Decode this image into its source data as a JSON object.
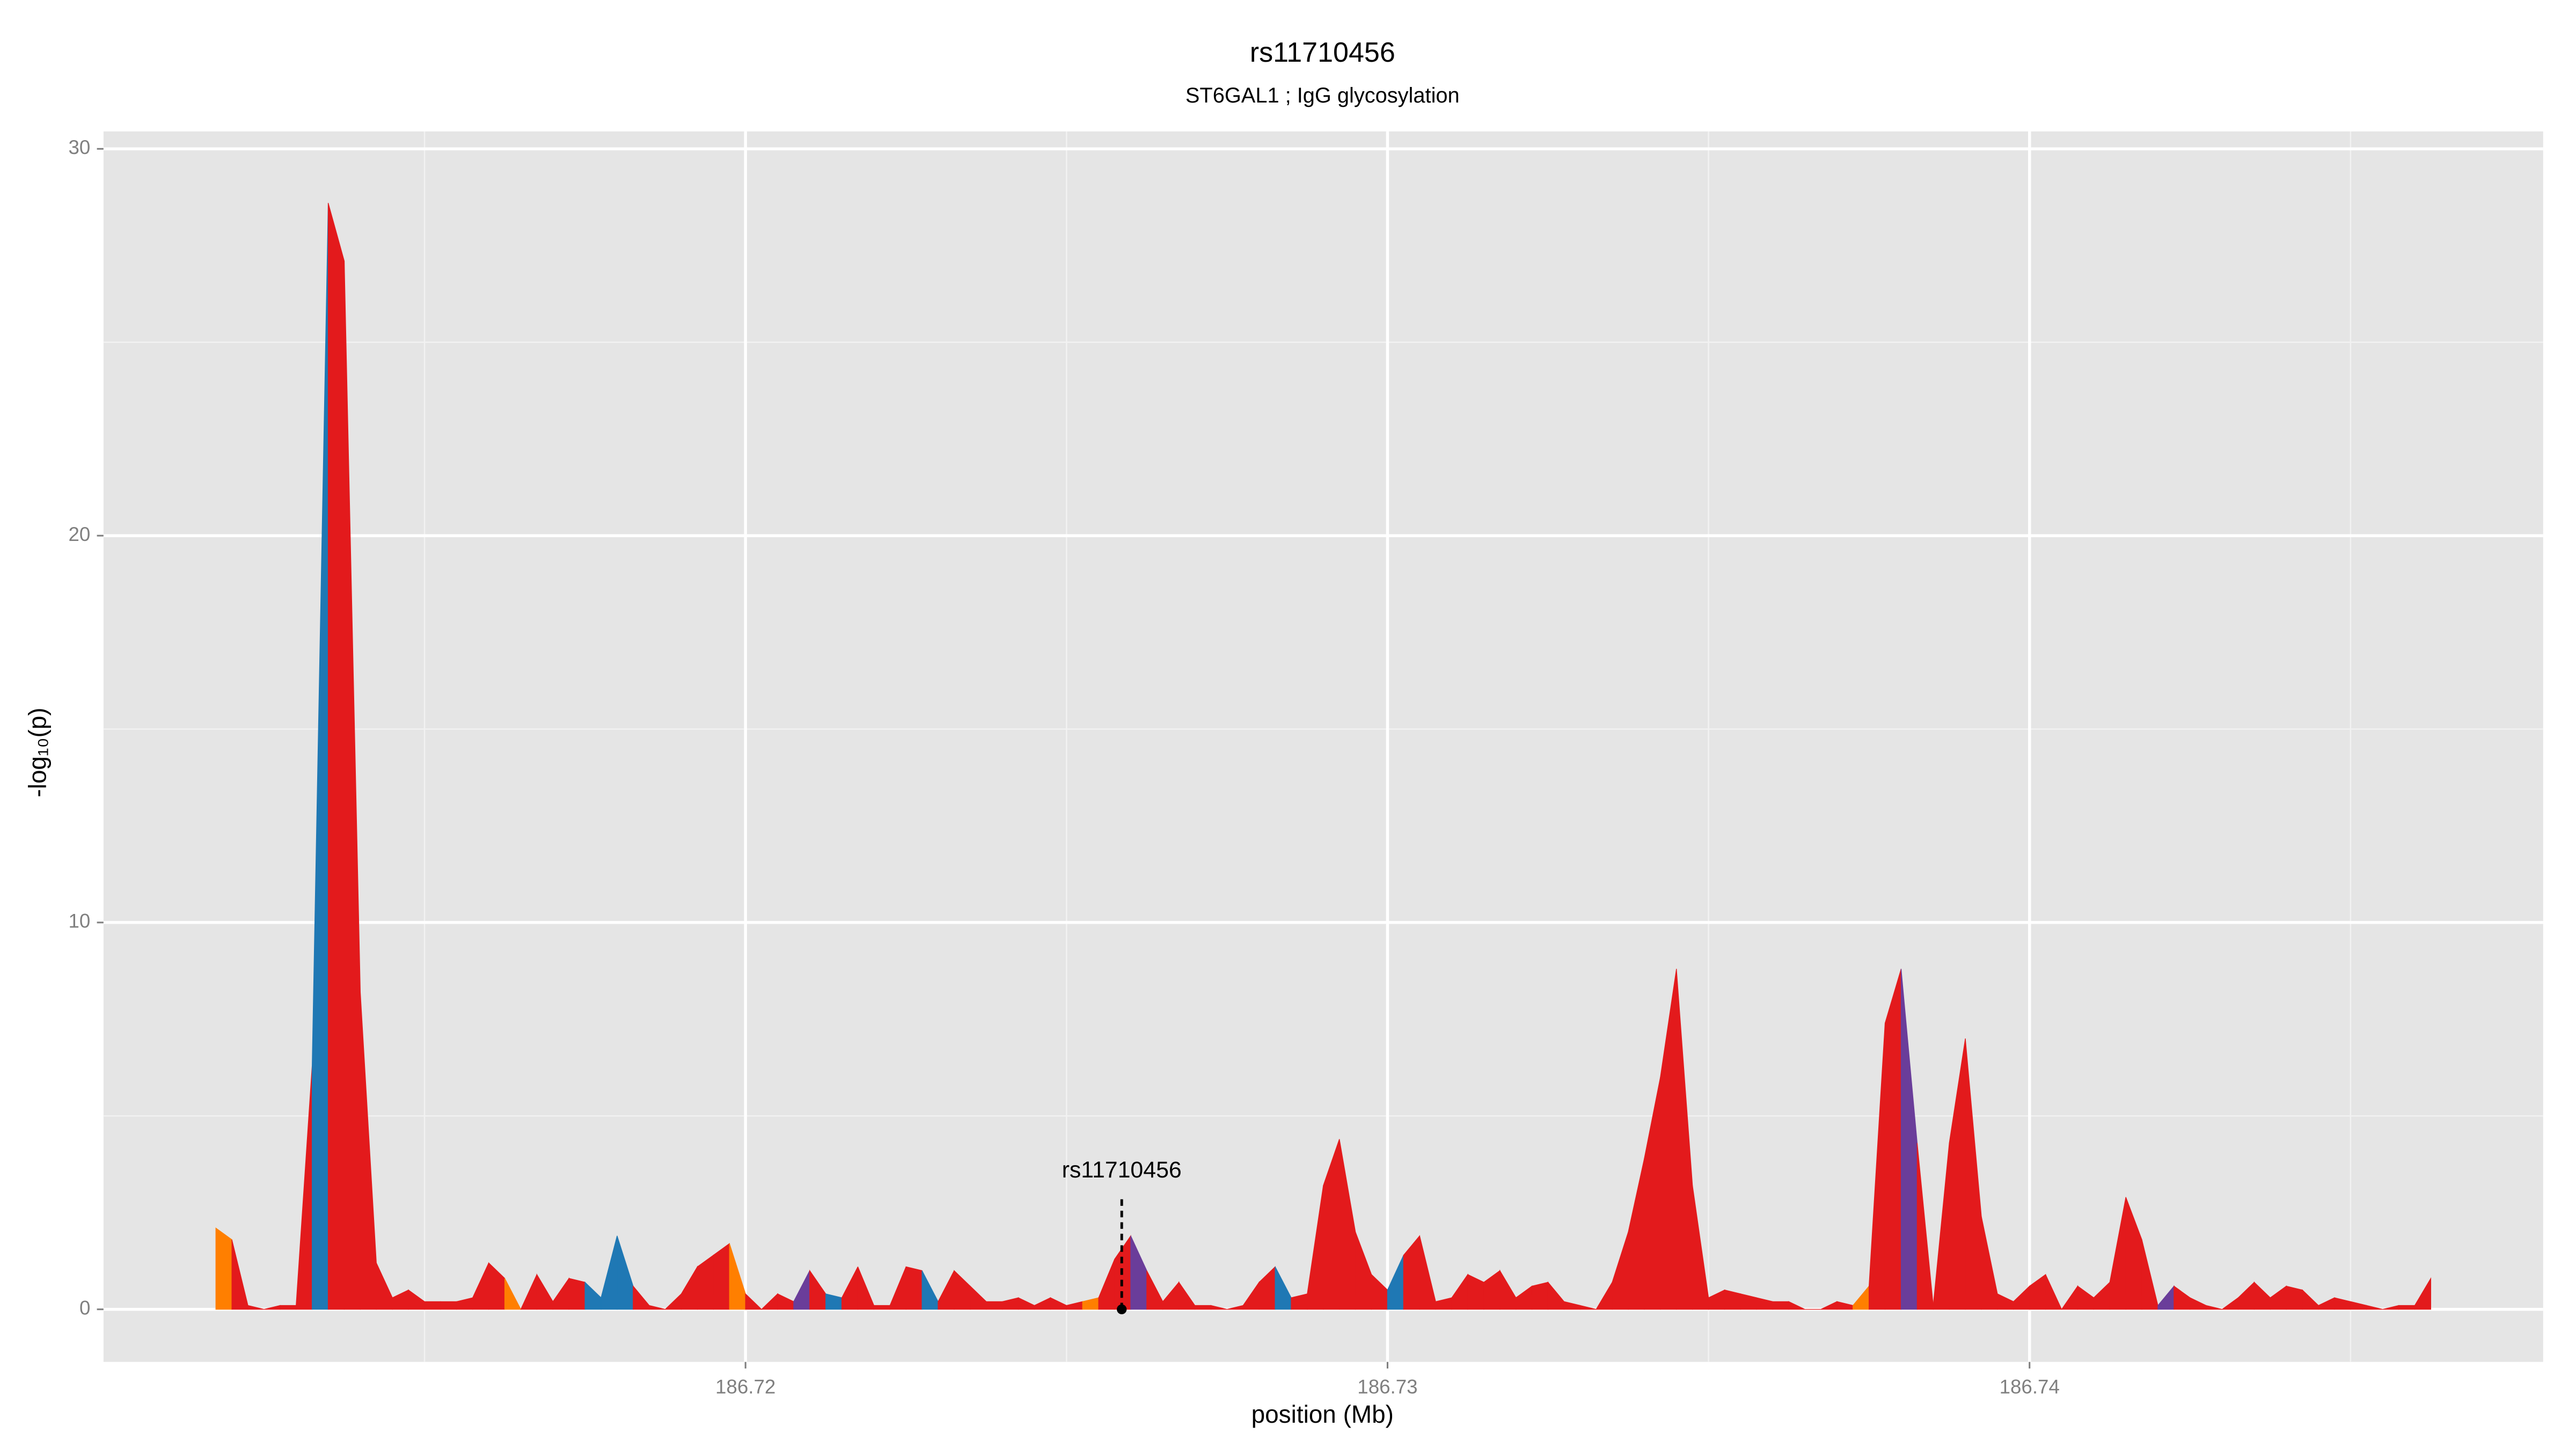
{
  "chart_data": {
    "type": "area",
    "title": "rs11710456",
    "subtitle": "ST6GAL1 ; IgG glycosylation",
    "xlabel": "position (Mb)",
    "ylabel": "-log₁₀(p)",
    "xlim": [
      186.71,
      186.748
    ],
    "ylim": [
      -1.36,
      30.45
    ],
    "xticks": [
      186.72,
      186.73,
      186.74
    ],
    "yticks": [
      0,
      10,
      20,
      30
    ],
    "x_minor_grid": [
      186.715,
      186.725,
      186.735,
      186.745
    ],
    "y_minor_grid": [
      5,
      15,
      25
    ],
    "grid": true,
    "x": [
      186.71175,
      186.712,
      186.71225,
      186.7125,
      186.71275,
      186.713,
      186.71325,
      186.7135,
      186.71375,
      186.714,
      186.71425,
      186.7145,
      186.71475,
      186.715,
      186.71525,
      186.7155,
      186.71575,
      186.716,
      186.71625,
      186.7165,
      186.71675,
      186.717,
      186.71725,
      186.7175,
      186.71775,
      186.718,
      186.71825,
      186.7185,
      186.71875,
      186.719,
      186.71925,
      186.7195,
      186.71975,
      186.72,
      186.72025,
      186.7205,
      186.72075,
      186.721,
      186.72125,
      186.7215,
      186.72175,
      186.722,
      186.72225,
      186.7225,
      186.72275,
      186.723,
      186.72325,
      186.7235,
      186.72375,
      186.724,
      186.72425,
      186.7245,
      186.72475,
      186.725,
      186.72525,
      186.7255,
      186.72575,
      186.726,
      186.72625,
      186.7265,
      186.72675,
      186.727,
      186.72725,
      186.7275,
      186.72775,
      186.728,
      186.72825,
      186.7285,
      186.72875,
      186.729,
      186.72925,
      186.7295,
      186.72975,
      186.73,
      186.73025,
      186.7305,
      186.73075,
      186.731,
      186.73125,
      186.7315,
      186.73175,
      186.732,
      186.73225,
      186.7325,
      186.73275,
      186.733,
      186.73325,
      186.7335,
      186.73375,
      186.734,
      186.73425,
      186.7345,
      186.73475,
      186.735,
      186.73525,
      186.7355,
      186.73575,
      186.736,
      186.73625,
      186.7365,
      186.73675,
      186.737,
      186.73725,
      186.7375,
      186.73775,
      186.738,
      186.73825,
      186.7385,
      186.73875,
      186.739,
      186.73925,
      186.7395,
      186.73975,
      186.74,
      186.74025,
      186.7405,
      186.74075,
      186.741,
      186.74125,
      186.7415,
      186.74175,
      186.742,
      186.74225,
      186.7425,
      186.74275,
      186.743,
      186.74325,
      186.7435,
      186.74375,
      186.744,
      186.74425,
      186.7445,
      186.74475,
      186.745,
      186.74525,
      186.7455,
      186.74575,
      186.746,
      186.74625
    ],
    "values": [
      2.1,
      1.8,
      0.1,
      0,
      0.1,
      0.1,
      6.3,
      28.6,
      27.1,
      8.2,
      1.2,
      0.3,
      0.5,
      0.2,
      0.2,
      0.2,
      0.3,
      1.2,
      0.8,
      0,
      0.9,
      0.2,
      0.8,
      0.7,
      0.3,
      1.9,
      0.6,
      0.1,
      0,
      0.4,
      1.1,
      1.4,
      1.7,
      0.4,
      0,
      0.4,
      0.2,
      1.0,
      0.4,
      0.3,
      1.1,
      0.1,
      0.1,
      1.1,
      1.0,
      0.2,
      1.0,
      0.6,
      0.2,
      0.2,
      0.3,
      0.1,
      0.3,
      0.1,
      0.2,
      0.3,
      1.3,
      1.9,
      1.0,
      0.2,
      0.7,
      0.1,
      0.1,
      0,
      0.1,
      0.7,
      1.1,
      0.3,
      0.4,
      3.2,
      4.4,
      2.0,
      0.9,
      0.5,
      1.4,
      1.9,
      0.2,
      0.3,
      0.9,
      0.7,
      1.0,
      0.3,
      0.6,
      0.7,
      0.2,
      0.1,
      0,
      0.7,
      2.0,
      3.9,
      6.0,
      8.8,
      3.2,
      0.3,
      0.5,
      0.4,
      0.3,
      0.2,
      0.2,
      0,
      0,
      0.2,
      0.1,
      0.6,
      7.4,
      8.8,
      4.3,
      0.1,
      4.3,
      7.0,
      2.4,
      0.4,
      0.2,
      0.6,
      0.9,
      0,
      0.6,
      0.3,
      0.7,
      2.9,
      1.8,
      0.1,
      0.6,
      0.3,
      0.1,
      0,
      0.3,
      0.7,
      0.3,
      0.6,
      0.5,
      0.1,
      0.3,
      0.2,
      0.1,
      0,
      0.1,
      0.1,
      0.8
    ],
    "colors": [
      "#ff7f00",
      "#e31a1c",
      "#e31a1c",
      "#e31a1c",
      "#e31a1c",
      "#e31a1c",
      "#1f78b4",
      "#e31a1c",
      "#e31a1c",
      "#e31a1c",
      "#e31a1c",
      "#e31a1c",
      "#e31a1c",
      "#e31a1c",
      "#e31a1c",
      "#e31a1c",
      "#e31a1c",
      "#e31a1c",
      "#ff7f00",
      "#e31a1c",
      "#e31a1c",
      "#e31a1c",
      "#e31a1c",
      "#1f78b4",
      "#1f78b4",
      "#1f78b4",
      "#e31a1c",
      "#e31a1c",
      "#e31a1c",
      "#e31a1c",
      "#e31a1c",
      "#e31a1c",
      "#ff7f00",
      "#e31a1c",
      "#e31a1c",
      "#e31a1c",
      "#6a3d9a",
      "#e31a1c",
      "#1f78b4",
      "#e31a1c",
      "#e31a1c",
      "#e31a1c",
      "#e31a1c",
      "#e31a1c",
      "#1f78b4",
      "#e31a1c",
      "#e31a1c",
      "#e31a1c",
      "#e31a1c",
      "#e31a1c",
      "#e31a1c",
      "#e31a1c",
      "#e31a1c",
      "#e31a1c",
      "#ff7f00",
      "#e31a1c",
      "#e31a1c",
      "#6a3d9a",
      "#e31a1c",
      "#e31a1c",
      "#e31a1c",
      "#e31a1c",
      "#e31a1c",
      "#e31a1c",
      "#e31a1c",
      "#e31a1c",
      "#1f78b4",
      "#e31a1c",
      "#e31a1c",
      "#e31a1c",
      "#e31a1c",
      "#e31a1c",
      "#e31a1c",
      "#1f78b4",
      "#e31a1c",
      "#e31a1c",
      "#e31a1c",
      "#e31a1c",
      "#e31a1c",
      "#e31a1c",
      "#e31a1c",
      "#e31a1c",
      "#e31a1c",
      "#e31a1c",
      "#e31a1c",
      "#e31a1c",
      "#e31a1c",
      "#e31a1c",
      "#e31a1c",
      "#e31a1c",
      "#e31a1c",
      "#e31a1c",
      "#e31a1c",
      "#e31a1c",
      "#e31a1c",
      "#e31a1c",
      "#e31a1c",
      "#e31a1c",
      "#e31a1c",
      "#e31a1c",
      "#e31a1c",
      "#e31a1c",
      "#ff7f00",
      "#e31a1c",
      "#e31a1c",
      "#6a3d9a",
      "#e31a1c",
      "#e31a1c",
      "#e31a1c",
      "#e31a1c",
      "#e31a1c",
      "#e31a1c",
      "#e31a1c",
      "#e31a1c",
      "#e31a1c",
      "#e31a1c",
      "#e31a1c",
      "#e31a1c",
      "#e31a1c",
      "#e31a1c",
      "#e31a1c",
      "#6a3d9a",
      "#e31a1c",
      "#e31a1c",
      "#e31a1c",
      "#e31a1c",
      "#e31a1c",
      "#e31a1c",
      "#e31a1c",
      "#e31a1c",
      "#e31a1c",
      "#e31a1c",
      "#e31a1c",
      "#e31a1c",
      "#e31a1c",
      "#e31a1c",
      "#e31a1c",
      "#e31a1c",
      "#e31a1c"
    ],
    "annotation": {
      "text": "rs11710456",
      "x": 186.72586,
      "y": 0
    }
  }
}
